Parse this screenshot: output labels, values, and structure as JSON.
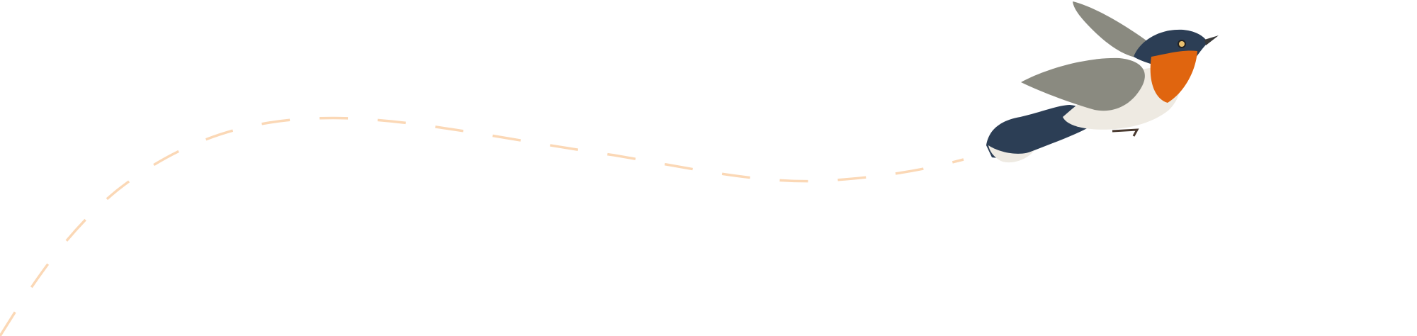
{
  "colors": {
    "background": "#ffffff",
    "flight_path": "#fbd8b6",
    "bird_back": "#2c3e55",
    "bird_throat": "#e0650f",
    "bird_belly": "#eeeae2",
    "bird_wing": "#8a8a80"
  },
  "illustration": {
    "subject": "flying-bird-icon",
    "path_style": "dashed"
  }
}
